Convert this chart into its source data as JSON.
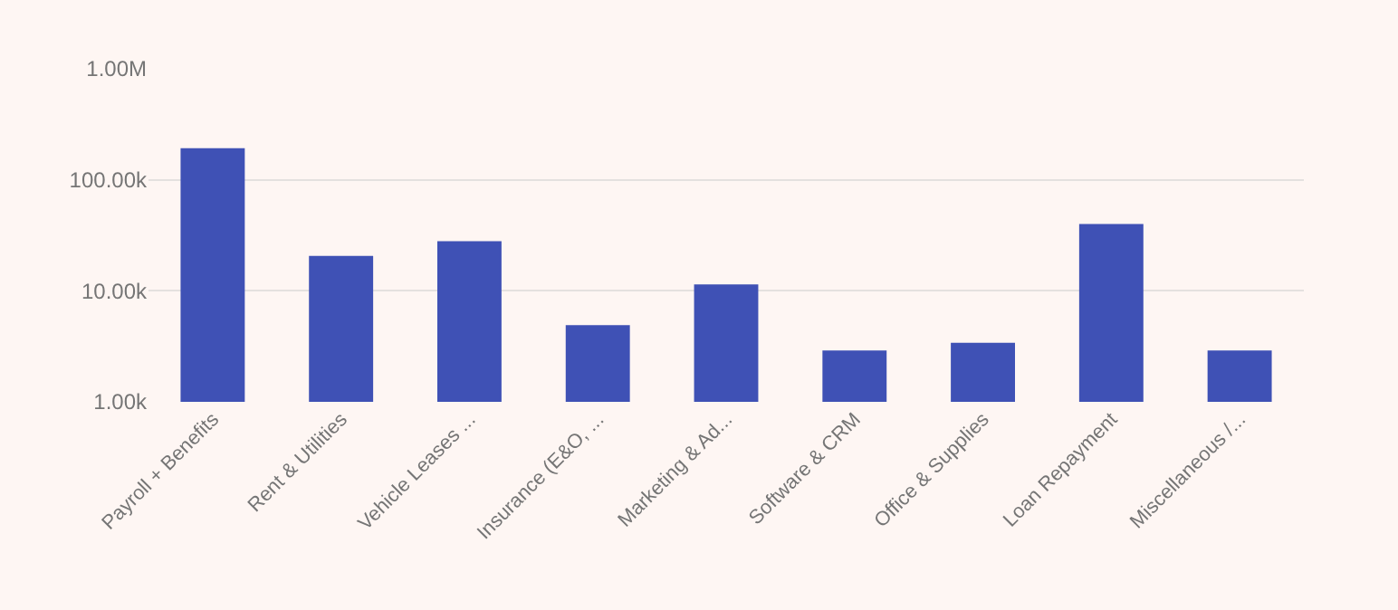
{
  "chart_data": {
    "type": "bar",
    "categories": [
      "Payroll + Benefits",
      "Rent & Utilities",
      "Vehicle Leases ...",
      "Insurance (E&O, ...",
      "Marketing & Ad...",
      "Software & CRM",
      "Office & Supplies",
      "Loan Repayment",
      "Miscellaneous /..."
    ],
    "values": [
      193000,
      20600,
      28000,
      4900,
      11400,
      2900,
      3400,
      40000,
      2900
    ],
    "color": "#3f51b5",
    "log": true,
    "ylim": [
      1000,
      1000000
    ],
    "yticks": [
      {
        "value": 1000,
        "label": "1.00k"
      },
      {
        "value": 10000,
        "label": "10.00k"
      },
      {
        "value": 100000,
        "label": "100.00k"
      },
      {
        "value": 1000000,
        "label": "1.00M"
      }
    ],
    "grid": "y"
  }
}
